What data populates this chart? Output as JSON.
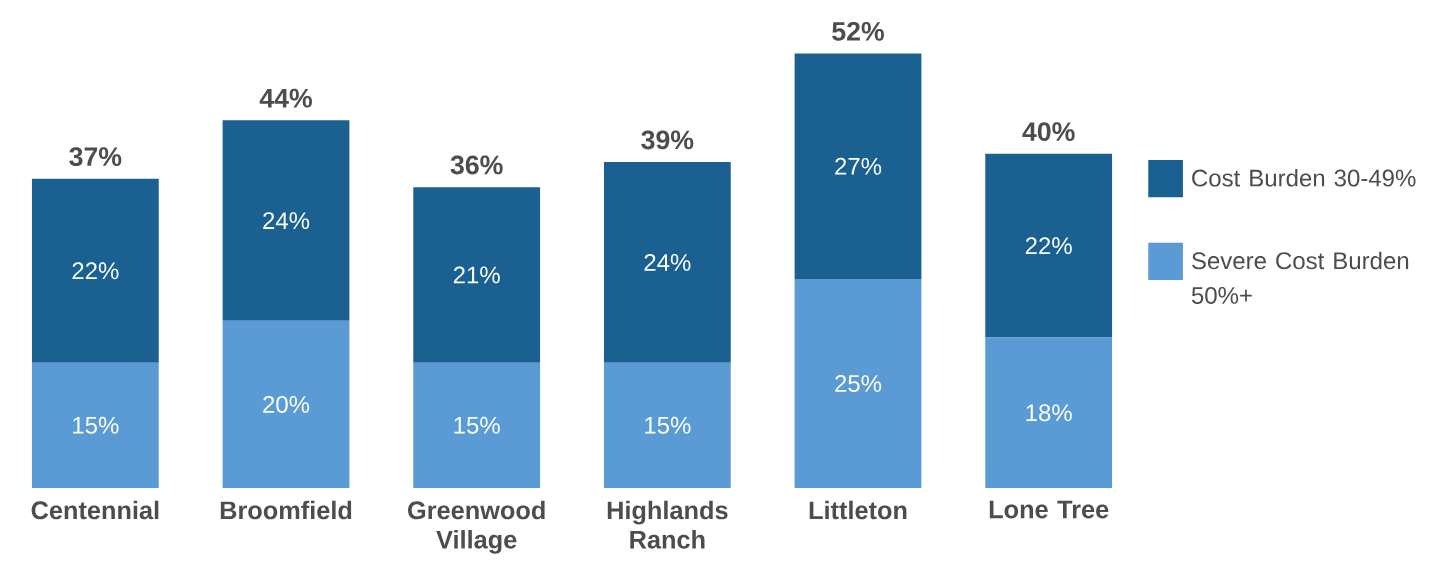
{
  "chart_data": {
    "type": "bar",
    "stacked": true,
    "categories": [
      "Centennial",
      "Broomfield",
      "Greenwood Village",
      "Highlands Ranch",
      "Littleton",
      "Lone Tree"
    ],
    "series": [
      {
        "name": "Severe Cost Burden 50%+",
        "color": "#5b9bd5",
        "values": [
          15,
          20,
          15,
          15,
          25,
          18
        ],
        "value_labels": [
          "15%",
          "20%",
          "15%",
          "15%",
          "25%",
          "18%"
        ]
      },
      {
        "name": "Cost Burden 30-49%",
        "color": "#1a6192",
        "values": [
          22,
          24,
          21,
          24,
          27,
          22
        ],
        "value_labels": [
          "22%",
          "24%",
          "21%",
          "24%",
          "27%",
          "22%"
        ]
      }
    ],
    "totals": [
      "37%",
      "44%",
      "36%",
      "39%",
      "52%",
      "40%"
    ],
    "legend": "right"
  }
}
